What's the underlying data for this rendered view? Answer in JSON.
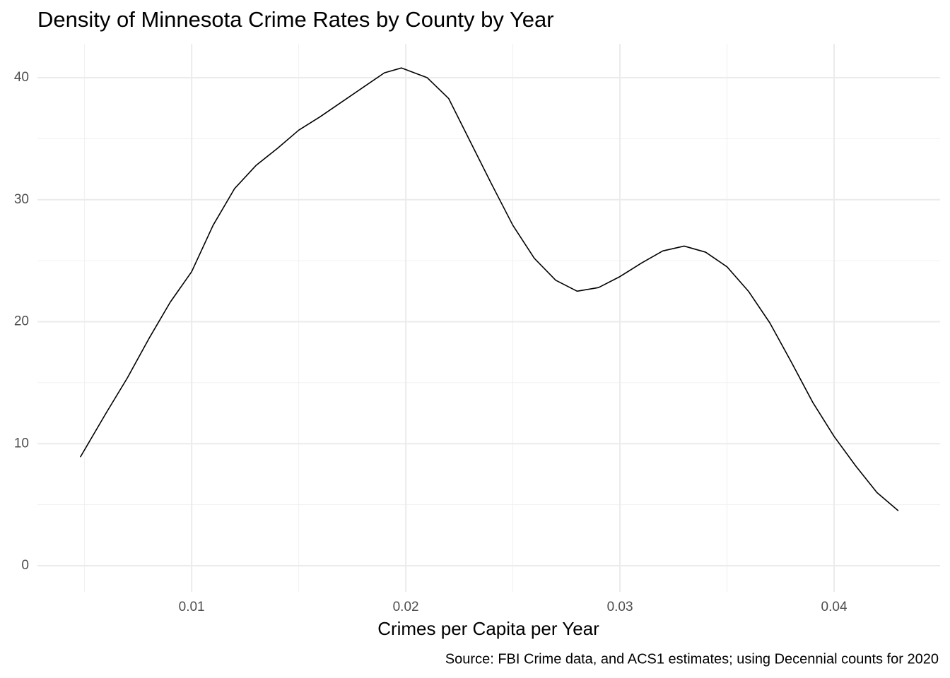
{
  "chart_data": {
    "type": "line",
    "title": "Density of Minnesota Crime Rates by County by Year",
    "x_label": "Crimes per Capita per Year",
    "caption": "Source: FBI Crime data, and ACS1 estimates; using Decennial counts for 2020",
    "x": [
      0.0048,
      0.006,
      0.007,
      0.008,
      0.009,
      0.01,
      0.011,
      0.012,
      0.013,
      0.014,
      0.015,
      0.016,
      0.017,
      0.018,
      0.019,
      0.0198,
      0.021,
      0.022,
      0.023,
      0.024,
      0.025,
      0.026,
      0.027,
      0.028,
      0.029,
      0.03,
      0.031,
      0.032,
      0.033,
      0.034,
      0.035,
      0.036,
      0.037,
      0.038,
      0.039,
      0.04,
      0.041,
      0.042,
      0.043
    ],
    "series": [
      {
        "name": "density",
        "color": "#000000",
        "values": [
          8.9,
          12.5,
          15.4,
          18.6,
          21.6,
          24.1,
          27.9,
          30.9,
          32.8,
          34.2,
          35.7,
          36.8,
          38.0,
          39.2,
          40.4,
          40.8,
          40.0,
          38.3,
          34.8,
          31.3,
          27.9,
          25.2,
          23.4,
          22.5,
          22.8,
          23.7,
          24.8,
          25.8,
          26.2,
          25.7,
          24.5,
          22.5,
          19.9,
          16.7,
          13.4,
          10.6,
          8.2,
          6.0,
          4.5
        ]
      }
    ],
    "xlim": [
      0.0028,
      0.04495
    ],
    "ylim": [
      -2.14,
      42.78
    ],
    "xticks": [
      0.01,
      0.02,
      0.03,
      0.04
    ],
    "yticks": [
      0,
      10,
      20,
      30,
      40
    ],
    "x_minor_ticks": [
      0.005,
      0.015,
      0.025,
      0.035
    ],
    "y_minor_ticks": [
      5,
      15,
      25,
      35
    ],
    "grid": true
  }
}
